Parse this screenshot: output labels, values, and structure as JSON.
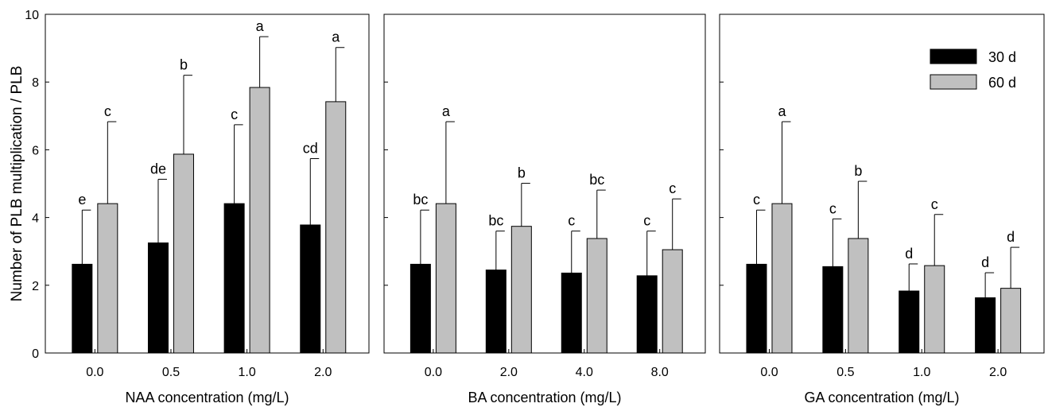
{
  "shared_ylabel": "Number of PLB multiplication / PLB",
  "legend": {
    "placement": "top-right",
    "items": [
      "30 d",
      "60 d"
    ]
  },
  "colors": {
    "d30": "#000000",
    "d60": "#c0c0c0",
    "frame": "#000000"
  },
  "chart_data": [
    {
      "type": "bar",
      "xlabel": "NAA concentration (mg/L)",
      "ylabel": "Number of PLB multiplication / PLB",
      "categories": [
        "0.0",
        "0.5",
        "1.0",
        "2.0"
      ],
      "ylim": [
        0,
        10
      ],
      "yticks": [
        "0",
        "2",
        "4",
        "6",
        "8",
        "10"
      ],
      "series": [
        {
          "name": "30 d",
          "values": [
            2.62,
            3.25,
            4.41,
            3.78
          ],
          "errors": [
            1.6,
            1.88,
            2.33,
            1.96
          ],
          "letters": [
            "e",
            "de",
            "c",
            "cd"
          ]
        },
        {
          "name": "60 d",
          "values": [
            4.41,
            5.87,
            7.84,
            7.42
          ],
          "errors": [
            2.42,
            2.33,
            1.5,
            1.6
          ],
          "letters": [
            "c",
            "b",
            "a",
            "a"
          ]
        }
      ]
    },
    {
      "type": "bar",
      "xlabel": "BA concentration (mg/L)",
      "ylabel": "",
      "categories": [
        "0.0",
        "2.0",
        "4.0",
        "8.0"
      ],
      "ylim": [
        0,
        10
      ],
      "series": [
        {
          "name": "30 d",
          "values": [
            2.62,
            2.45,
            2.36,
            2.28
          ],
          "errors": [
            1.6,
            1.15,
            1.24,
            1.32
          ],
          "letters": [
            "bc",
            "bc",
            "c",
            "c"
          ]
        },
        {
          "name": "60 d",
          "values": [
            4.41,
            3.74,
            3.38,
            3.05
          ],
          "errors": [
            2.42,
            1.27,
            1.43,
            1.5
          ],
          "letters": [
            "a",
            "b",
            "bc",
            "c"
          ]
        }
      ]
    },
    {
      "type": "bar",
      "xlabel": "GA concentration (mg/L)",
      "ylabel": "",
      "categories": [
        "0.0",
        "0.5",
        "1.0",
        "2.0"
      ],
      "ylim": [
        0,
        10
      ],
      "series": [
        {
          "name": "30 d",
          "values": [
            2.62,
            2.55,
            1.83,
            1.63
          ],
          "errors": [
            1.6,
            1.41,
            0.8,
            0.74
          ],
          "letters": [
            "c",
            "c",
            "d",
            "d"
          ]
        },
        {
          "name": "60 d",
          "values": [
            4.41,
            3.38,
            2.58,
            1.91
          ],
          "errors": [
            2.42,
            1.69,
            1.51,
            1.21
          ],
          "letters": [
            "a",
            "b",
            "c",
            "d"
          ]
        }
      ]
    }
  ]
}
